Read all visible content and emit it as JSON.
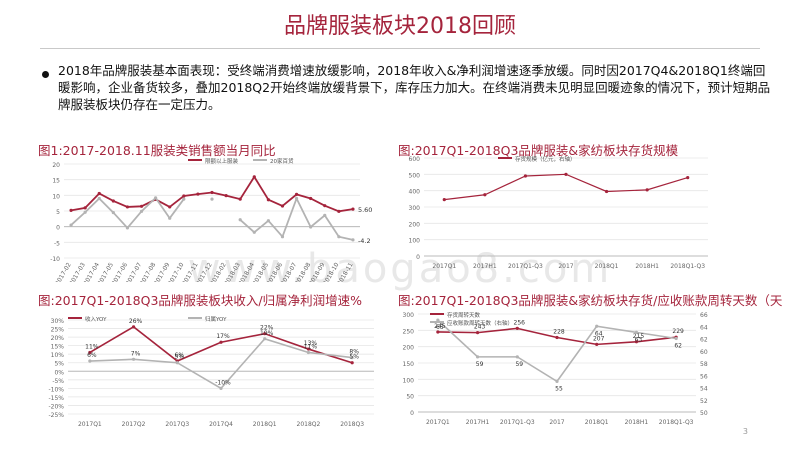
{
  "page": {
    "title": "品牌服装板块2018回顾",
    "bullet": "2018年品牌服装基本面表现：受终端消费增速放缓影响，2018年收入&净利润增速逐季放缓。同时因2017Q4&2018Q1终端回暖影响，企业备货较多，叠加2018Q2开始终端放缓背景下，库存压力加大。在终端消费未见明显回暖迹象的情况下，预计短期品牌服装板块仍存在一定压力。",
    "watermark": "www.baogao8.com",
    "page_number": "3"
  },
  "colors": {
    "accent": "#a5243c",
    "series1": "#a5243c",
    "series2": "#b3b3b3"
  },
  "chart_data": [
    {
      "id": "fig1",
      "type": "line",
      "title": "图1:2017-2018.11服装类销售额当月同比",
      "categories": [
        "2017-02",
        "2017-03",
        "2017-04",
        "2017-05",
        "2017-06",
        "2017-07",
        "2017-08",
        "2017-09",
        "2017-10",
        "2017-11",
        "2017-12",
        "2018-02",
        "2018-03",
        "2018-04",
        "2018-05",
        "2018-06",
        "2018-07",
        "2018-08",
        "2018-09",
        "2018-10",
        "2018-11"
      ],
      "series": [
        {
          "name": "限额以上服装",
          "values": [
            5.2,
            6.0,
            10.6,
            8.2,
            6.3,
            6.5,
            8.7,
            6.3,
            9.8,
            10.4,
            10.9,
            9.9,
            8.8,
            15.9,
            8.6,
            6.6,
            10.3,
            9.0,
            6.7,
            4.9,
            5.6
          ]
        },
        {
          "name": "20家百货",
          "values": [
            0.5,
            4.6,
            9.0,
            4.5,
            -0.4,
            4.9,
            9.2,
            2.7,
            8.8,
            null,
            8.8,
            null,
            2.2,
            -1.8,
            1.9,
            -3.2,
            9.0,
            -0.1,
            3.6,
            -3.2,
            -4.2
          ]
        }
      ],
      "ylim": [
        -10,
        20
      ],
      "yticks": [
        -10,
        -5,
        0,
        5,
        10,
        15,
        20
      ],
      "end_labels": [
        "5.60",
        "-4.2"
      ]
    },
    {
      "id": "fig2",
      "type": "line",
      "title": "图:2017Q1-2018Q3品牌服装&家纺板块存货规模",
      "categories": [
        "2017Q1",
        "2017H1",
        "2017Q1-Q3",
        "2017",
        "2018Q1",
        "2018H1",
        "2018Q1-Q3"
      ],
      "series": [
        {
          "name": "存货规模（亿元，右轴）",
          "values": [
            345,
            375,
            490,
            500,
            395,
            405,
            480
          ]
        }
      ],
      "ylim": [
        0,
        600
      ],
      "yticks": [
        0,
        100,
        200,
        300,
        400,
        500,
        600
      ]
    },
    {
      "id": "fig3",
      "type": "line",
      "title": "图:2017Q1-2018Q3品牌服装板块收入/归属净利润增速%",
      "categories": [
        "2017Q1",
        "2017Q2",
        "2017Q3",
        "2017Q4",
        "2018Q1",
        "2018Q2",
        "2018Q3"
      ],
      "series": [
        {
          "name": "收入YOY",
          "values": [
            11,
            26,
            6,
            17,
            22,
            13,
            5
          ]
        },
        {
          "name": "归属YOY",
          "values": [
            6,
            7,
            5,
            -10,
            19,
            11,
            8
          ]
        }
      ],
      "point_labels": [
        [
          "11%",
          "26%",
          "6%",
          "17%",
          "22%",
          "13%",
          "5%"
        ],
        [
          "6%",
          "7%",
          "5%",
          "-10%",
          "19%",
          "11%",
          "8%"
        ]
      ],
      "ylim": [
        -25,
        30
      ],
      "yticks": [
        -25,
        -20,
        -15,
        -10,
        -5,
        0,
        5,
        10,
        15,
        20,
        25,
        30
      ]
    },
    {
      "id": "fig4",
      "type": "line",
      "title": "图:2017Q1-2018Q3品牌服装&家纺板块存货/应收账款周转天数（天",
      "categories": [
        "2017Q1",
        "2017H1",
        "2017Q1-Q3",
        "2017",
        "2018Q1",
        "2018H1",
        "2018Q1-Q3"
      ],
      "series": [
        {
          "name": "存货周转天数",
          "axis": "left",
          "values": [
            245,
            243,
            256,
            228,
            207,
            215,
            229
          ]
        },
        {
          "name": "应收账款周转天数（右轴）",
          "axis": "right",
          "values": [
            65,
            59,
            59,
            55,
            64,
            63,
            62
          ]
        }
      ],
      "point_labels": [
        [
          "245",
          "243",
          "256",
          "228",
          "207",
          "215",
          "229"
        ],
        [
          "65",
          "59",
          "59",
          "55",
          "64",
          "63",
          "62"
        ]
      ],
      "ylim": [
        0,
        300
      ],
      "yticks": [
        0,
        50,
        100,
        150,
        200,
        250,
        300
      ],
      "y2lim": [
        50,
        66
      ],
      "y2ticks": [
        50,
        52,
        54,
        56,
        58,
        60,
        62,
        64,
        66
      ]
    }
  ]
}
